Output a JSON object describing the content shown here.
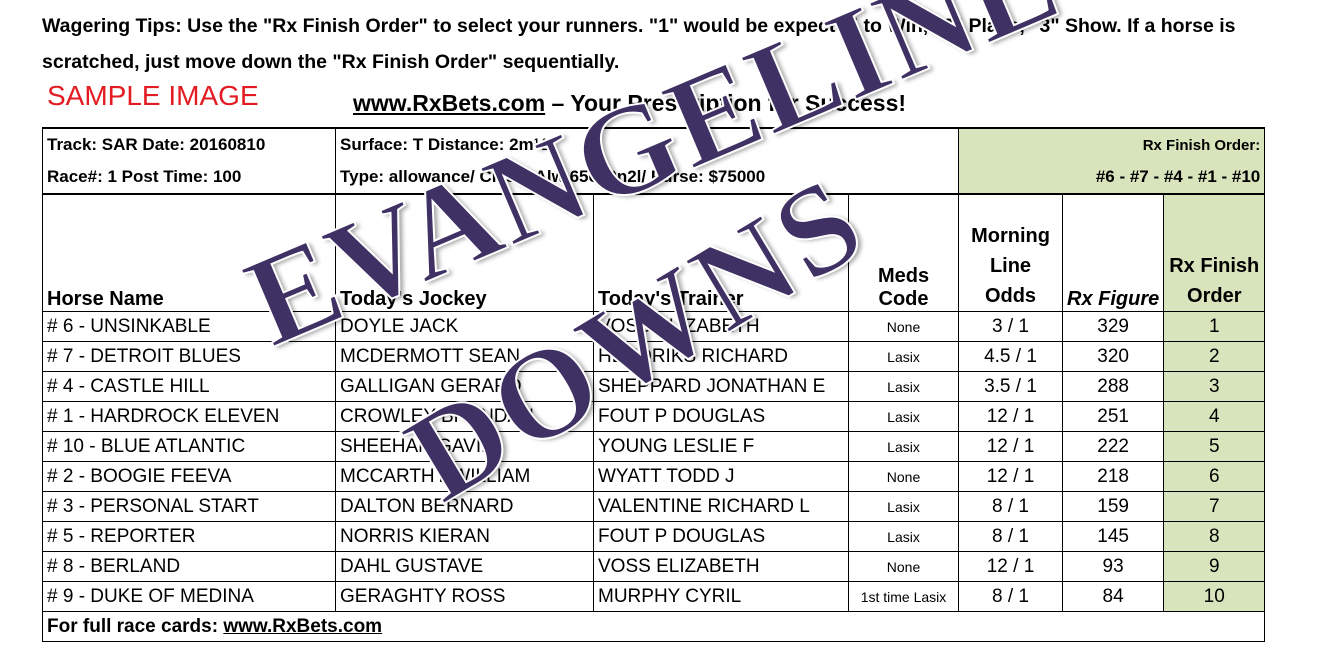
{
  "tips_line1": "Wagering Tips: Use the \"Rx Finish Order\" to select your runners.  \"1\" would be expected to Win, \"2\" Place, \"3\" Show.  If a horse is scratched, just move down the \"Rx Finish Order\" sequentially.",
  "sample_label": "SAMPLE IMAGE",
  "site_link": "www.RxBets.com",
  "site_tagline": " – Your Prescription for Success!",
  "info": {
    "track_date": "Track: SAR   Date: 20160810",
    "race_post": "Race#: 1   Post Time: 100",
    "surface_distance": "Surface: T   Distance: 2m½f",
    "type_class_purse": "Type:  allowance/  Class: Alw 65000n2l/  Purse: $75000",
    "finish_order_label": "Rx Finish Order:",
    "finish_order_value": "#6 - #7 - #4 - #1 - #10"
  },
  "headers": [
    "Horse Name",
    "Today's Jockey",
    "Today's Trainer",
    "Meds Code",
    "Morning Line Odds",
    "Rx Figure",
    "Rx Finish Order"
  ],
  "rows": [
    {
      "horse": "# 6 - UNSINKABLE",
      "jockey": "DOYLE JACK",
      "trainer": "VOSS ELIZABETH",
      "meds": "None",
      "odds": "3 / 1",
      "fig": "329",
      "order": "1"
    },
    {
      "horse": "# 7 - DETROIT BLUES",
      "jockey": "MCDERMOTT SEAN",
      "trainer": "HENDRIKS RICHARD",
      "meds": "Lasix",
      "odds": "4.5 / 1",
      "fig": "320",
      "order": "2"
    },
    {
      "horse": "# 4 - CASTLE HILL",
      "jockey": "GALLIGAN GERARD",
      "trainer": "SHEPPARD JONATHAN E",
      "meds": "Lasix",
      "odds": "3.5 / 1",
      "fig": "288",
      "order": "3"
    },
    {
      "horse": "# 1 - HARDROCK ELEVEN",
      "jockey": "CROWLEY BRENDAN",
      "trainer": "FOUT P DOUGLAS",
      "meds": "Lasix",
      "odds": "12 / 1",
      "fig": "251",
      "order": "4"
    },
    {
      "horse": "# 10 - BLUE ATLANTIC",
      "jockey": "SHEEHAN GAVIN",
      "trainer": "YOUNG LESLIE F",
      "meds": "Lasix",
      "odds": "12 / 1",
      "fig": "222",
      "order": "5"
    },
    {
      "horse": "# 2 - BOOGIE FEEVA",
      "jockey": "MCCARTHY WILLIAM",
      "trainer": "WYATT TODD J",
      "meds": "None",
      "odds": "12 / 1",
      "fig": "218",
      "order": "6"
    },
    {
      "horse": "# 3 - PERSONAL START",
      "jockey": "DALTON BERNARD",
      "trainer": "VALENTINE RICHARD L",
      "meds": "Lasix",
      "odds": "8 / 1",
      "fig": "159",
      "order": "7"
    },
    {
      "horse": "# 5 - REPORTER",
      "jockey": "NORRIS KIERAN",
      "trainer": "FOUT P DOUGLAS",
      "meds": "Lasix",
      "odds": "8 / 1",
      "fig": "145",
      "order": "8"
    },
    {
      "horse": "# 8 - BERLAND",
      "jockey": "DAHL GUSTAVE",
      "trainer": "VOSS ELIZABETH",
      "meds": "None",
      "odds": "12 / 1",
      "fig": "93",
      "order": "9"
    },
    {
      "horse": "# 9 - DUKE OF MEDINA",
      "jockey": "GERAGHTY ROSS",
      "trainer": "MURPHY CYRIL",
      "meds": "1st time Lasix",
      "odds": "8 / 1",
      "fig": "84",
      "order": "10"
    }
  ],
  "footer_label": "For full race cards: ",
  "footer_link": "www.RxBets.com",
  "watermark": {
    "line1": "EVANGELINE",
    "line2": "DOWNS",
    "color": "#3f3163"
  },
  "colors": {
    "sample": "#e31b23",
    "highlight": "#d8e4bc"
  }
}
